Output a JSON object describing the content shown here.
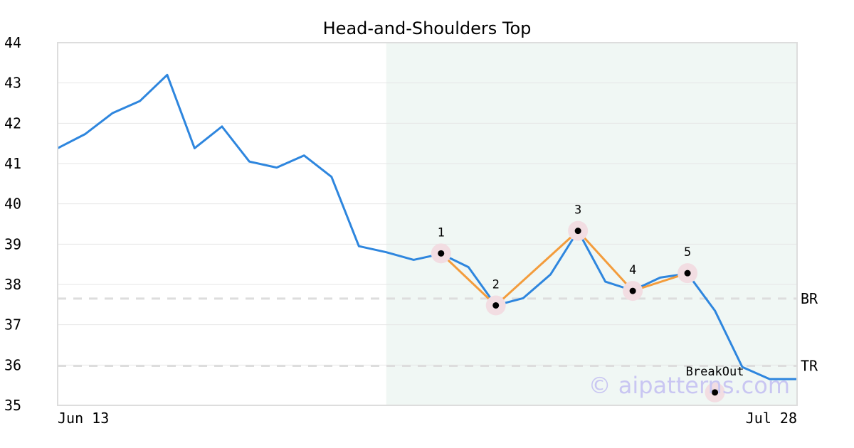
{
  "chart_data": {
    "type": "line",
    "title": "Head-and-Shoulders Top",
    "x_tick_labels": [
      "Jun 13",
      "Jul 28"
    ],
    "y_ticks": [
      35,
      36,
      37,
      38,
      39,
      40,
      41,
      42,
      43,
      44
    ],
    "ylim": [
      35,
      44
    ],
    "grid": true,
    "x": [
      0,
      1,
      2,
      3,
      4,
      5,
      6,
      7,
      8,
      9,
      10,
      11,
      12,
      13,
      14,
      15,
      16,
      17,
      18,
      19,
      20,
      21,
      22,
      23,
      24,
      25,
      26,
      27
    ],
    "series": [
      {
        "values": [
          41.38,
          41.73,
          42.25,
          42.55,
          43.2,
          41.38,
          41.92,
          41.05,
          40.9,
          41.2,
          40.67,
          38.95,
          38.8,
          38.61,
          38.76,
          38.43,
          37.48,
          37.66,
          38.25,
          39.33,
          38.07,
          37.85,
          38.17,
          38.27,
          37.35,
          35.95,
          35.65,
          35.65
        ],
        "color": "#2e86de"
      }
    ],
    "pattern": {
      "x_range": [
        12,
        27
      ],
      "color": "#f0f7f4",
      "line_color": "#f39c3c",
      "points": [
        {
          "label": "1",
          "x": 14,
          "y": 38.77
        },
        {
          "label": "2",
          "x": 16,
          "y": 37.48
        },
        {
          "label": "3",
          "x": 19,
          "y": 39.33
        },
        {
          "label": "4",
          "x": 21,
          "y": 37.84
        },
        {
          "label": "5",
          "x": 23,
          "y": 38.28
        }
      ],
      "breakout": {
        "label": "BreakOut",
        "x": 24,
        "y": 35.32
      }
    },
    "reference_lines": [
      {
        "label": "BR",
        "y": 37.65
      },
      {
        "label": "TR",
        "y": 35.98
      }
    ],
    "watermark": "© aipatterns.com"
  }
}
